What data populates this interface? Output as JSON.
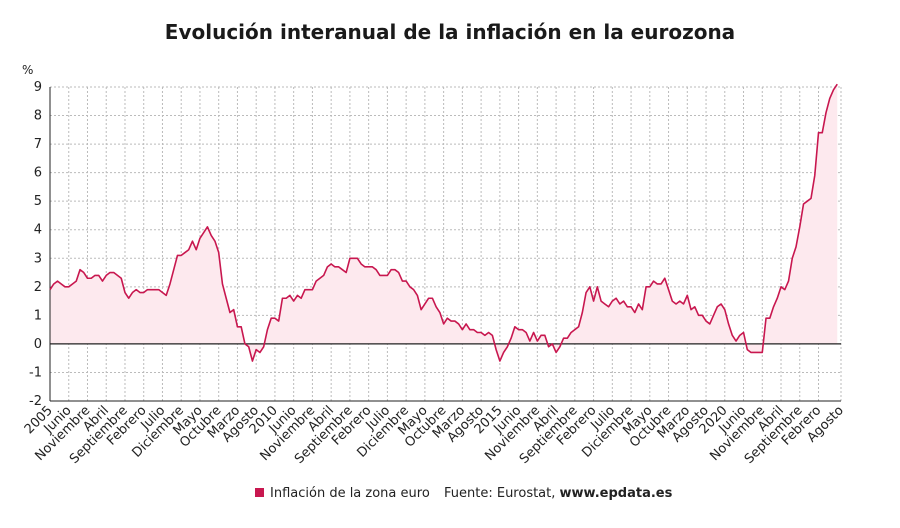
{
  "chart_data": {
    "type": "area",
    "title": "Evolución interanual de la inflación en la eurozona",
    "unit_label": "%",
    "ylim": [
      -2,
      9
    ],
    "yticks": [
      -2,
      -1,
      0,
      1,
      2,
      3,
      4,
      5,
      6,
      7,
      8,
      9
    ],
    "xlim": [
      0,
      211
    ],
    "grid": true,
    "legend_position": "bottom",
    "colors": {
      "line": "#c8174f",
      "fill": "#fde9ee",
      "zero_line": "#222222",
      "grid": "#bbbbbb",
      "axis": "#222222"
    },
    "x_tick_labels": [
      {
        "x": 0,
        "label": "2005"
      },
      {
        "x": 5,
        "label": "Junio"
      },
      {
        "x": 10,
        "label": "Noviembre"
      },
      {
        "x": 15,
        "label": "Abril"
      },
      {
        "x": 20,
        "label": "Septiembre"
      },
      {
        "x": 25,
        "label": "Febrero"
      },
      {
        "x": 30,
        "label": "Julio"
      },
      {
        "x": 35,
        "label": "Diciembre"
      },
      {
        "x": 40,
        "label": "Mayo"
      },
      {
        "x": 45,
        "label": "Octubre"
      },
      {
        "x": 50,
        "label": "Marzo"
      },
      {
        "x": 55,
        "label": "Agosto"
      },
      {
        "x": 60,
        "label": "2010"
      },
      {
        "x": 65,
        "label": "Junio"
      },
      {
        "x": 70,
        "label": "Noviembre"
      },
      {
        "x": 75,
        "label": "Abril"
      },
      {
        "x": 80,
        "label": "Septiembre"
      },
      {
        "x": 85,
        "label": "Febrero"
      },
      {
        "x": 90,
        "label": "Julio"
      },
      {
        "x": 95,
        "label": "Diciembre"
      },
      {
        "x": 100,
        "label": "Mayo"
      },
      {
        "x": 105,
        "label": "Octubre"
      },
      {
        "x": 110,
        "label": "Marzo"
      },
      {
        "x": 115,
        "label": "Agosto"
      },
      {
        "x": 120,
        "label": "2015"
      },
      {
        "x": 125,
        "label": "Junio"
      },
      {
        "x": 130,
        "label": "Noviembre"
      },
      {
        "x": 135,
        "label": "Abril"
      },
      {
        "x": 140,
        "label": "Septiembre"
      },
      {
        "x": 145,
        "label": "Febrero"
      },
      {
        "x": 150,
        "label": "Julio"
      },
      {
        "x": 155,
        "label": "Diciembre"
      },
      {
        "x": 160,
        "label": "Mayo"
      },
      {
        "x": 165,
        "label": "Octubre"
      },
      {
        "x": 170,
        "label": "Marzo"
      },
      {
        "x": 175,
        "label": "Agosto"
      },
      {
        "x": 180,
        "label": "2020"
      },
      {
        "x": 185,
        "label": "Junio"
      },
      {
        "x": 190,
        "label": "Noviembre"
      },
      {
        "x": 195,
        "label": "Abril"
      },
      {
        "x": 200,
        "label": "Septiembre"
      },
      {
        "x": 205,
        "label": "Febrero"
      },
      {
        "x": 211,
        "label": "Agosto"
      }
    ],
    "series": [
      {
        "name": "Inflación de la zona euro",
        "points": [
          [
            0,
            1.9
          ],
          [
            1,
            2.1
          ],
          [
            2,
            2.2
          ],
          [
            3,
            2.1
          ],
          [
            4,
            2.0
          ],
          [
            5,
            2.0
          ],
          [
            6,
            2.1
          ],
          [
            7,
            2.2
          ],
          [
            8,
            2.6
          ],
          [
            9,
            2.5
          ],
          [
            10,
            2.3
          ],
          [
            11,
            2.3
          ],
          [
            12,
            2.4
          ],
          [
            13,
            2.4
          ],
          [
            14,
            2.2
          ],
          [
            15,
            2.4
          ],
          [
            16,
            2.5
          ],
          [
            17,
            2.5
          ],
          [
            18,
            2.4
          ],
          [
            19,
            2.3
          ],
          [
            20,
            1.8
          ],
          [
            21,
            1.6
          ],
          [
            22,
            1.8
          ],
          [
            23,
            1.9
          ],
          [
            24,
            1.8
          ],
          [
            25,
            1.8
          ],
          [
            26,
            1.9
          ],
          [
            27,
            1.9
          ],
          [
            28,
            1.9
          ],
          [
            29,
            1.9
          ],
          [
            30,
            1.8
          ],
          [
            31,
            1.7
          ],
          [
            32,
            2.1
          ],
          [
            33,
            2.6
          ],
          [
            34,
            3.1
          ],
          [
            35,
            3.1
          ],
          [
            36,
            3.2
          ],
          [
            37,
            3.3
          ],
          [
            38,
            3.6
          ],
          [
            39,
            3.3
          ],
          [
            40,
            3.7
          ],
          [
            41,
            3.9
          ],
          [
            42,
            4.1
          ],
          [
            43,
            3.8
          ],
          [
            44,
            3.6
          ],
          [
            45,
            3.2
          ],
          [
            46,
            2.1
          ],
          [
            47,
            1.6
          ],
          [
            48,
            1.1
          ],
          [
            49,
            1.2
          ],
          [
            50,
            0.6
          ],
          [
            51,
            0.6
          ],
          [
            52,
            0.0
          ],
          [
            53,
            -0.1
          ],
          [
            54,
            -0.6
          ],
          [
            55,
            -0.2
          ],
          [
            56,
            -0.3
          ],
          [
            57,
            -0.1
          ],
          [
            58,
            0.5
          ],
          [
            59,
            0.9
          ],
          [
            60,
            0.9
          ],
          [
            61,
            0.8
          ],
          [
            62,
            1.6
          ],
          [
            63,
            1.6
          ],
          [
            64,
            1.7
          ],
          [
            65,
            1.5
          ],
          [
            66,
            1.7
          ],
          [
            67,
            1.6
          ],
          [
            68,
            1.9
          ],
          [
            69,
            1.9
          ],
          [
            70,
            1.9
          ],
          [
            71,
            2.2
          ],
          [
            72,
            2.3
          ],
          [
            73,
            2.4
          ],
          [
            74,
            2.7
          ],
          [
            75,
            2.8
          ],
          [
            76,
            2.7
          ],
          [
            77,
            2.7
          ],
          [
            78,
            2.6
          ],
          [
            79,
            2.5
          ],
          [
            80,
            3.0
          ],
          [
            81,
            3.0
          ],
          [
            82,
            3.0
          ],
          [
            83,
            2.8
          ],
          [
            84,
            2.7
          ],
          [
            85,
            2.7
          ],
          [
            86,
            2.7
          ],
          [
            87,
            2.6
          ],
          [
            88,
            2.4
          ],
          [
            89,
            2.4
          ],
          [
            90,
            2.4
          ],
          [
            91,
            2.6
          ],
          [
            92,
            2.6
          ],
          [
            93,
            2.5
          ],
          [
            94,
            2.2
          ],
          [
            95,
            2.2
          ],
          [
            96,
            2.0
          ],
          [
            97,
            1.9
          ],
          [
            98,
            1.7
          ],
          [
            99,
            1.2
          ],
          [
            100,
            1.4
          ],
          [
            101,
            1.6
          ],
          [
            102,
            1.6
          ],
          [
            103,
            1.3
          ],
          [
            104,
            1.1
          ],
          [
            105,
            0.7
          ],
          [
            106,
            0.9
          ],
          [
            107,
            0.8
          ],
          [
            108,
            0.8
          ],
          [
            109,
            0.7
          ],
          [
            110,
            0.5
          ],
          [
            111,
            0.7
          ],
          [
            112,
            0.5
          ],
          [
            113,
            0.5
          ],
          [
            114,
            0.4
          ],
          [
            115,
            0.4
          ],
          [
            116,
            0.3
          ],
          [
            117,
            0.4
          ],
          [
            118,
            0.3
          ],
          [
            119,
            -0.2
          ],
          [
            120,
            -0.6
          ],
          [
            121,
            -0.3
          ],
          [
            122,
            -0.1
          ],
          [
            123,
            0.2
          ],
          [
            124,
            0.6
          ],
          [
            125,
            0.5
          ],
          [
            126,
            0.5
          ],
          [
            127,
            0.4
          ],
          [
            128,
            0.1
          ],
          [
            129,
            0.4
          ],
          [
            130,
            0.1
          ],
          [
            131,
            0.3
          ],
          [
            132,
            0.3
          ],
          [
            133,
            -0.1
          ],
          [
            134,
            0.0
          ],
          [
            135,
            -0.3
          ],
          [
            136,
            -0.1
          ],
          [
            137,
            0.2
          ],
          [
            138,
            0.2
          ],
          [
            139,
            0.4
          ],
          [
            140,
            0.5
          ],
          [
            141,
            0.6
          ],
          [
            142,
            1.1
          ],
          [
            143,
            1.8
          ],
          [
            144,
            2.0
          ],
          [
            145,
            1.5
          ],
          [
            146,
            2.0
          ],
          [
            147,
            1.5
          ],
          [
            148,
            1.4
          ],
          [
            149,
            1.3
          ],
          [
            150,
            1.5
          ],
          [
            151,
            1.6
          ],
          [
            152,
            1.4
          ],
          [
            153,
            1.5
          ],
          [
            154,
            1.3
          ],
          [
            155,
            1.3
          ],
          [
            156,
            1.1
          ],
          [
            157,
            1.4
          ],
          [
            158,
            1.2
          ],
          [
            159,
            2.0
          ],
          [
            160,
            2.0
          ],
          [
            161,
            2.2
          ],
          [
            162,
            2.1
          ],
          [
            163,
            2.1
          ],
          [
            164,
            2.3
          ],
          [
            165,
            1.9
          ],
          [
            166,
            1.5
          ],
          [
            167,
            1.4
          ],
          [
            168,
            1.5
          ],
          [
            169,
            1.4
          ],
          [
            170,
            1.7
          ],
          [
            171,
            1.2
          ],
          [
            172,
            1.3
          ],
          [
            173,
            1.0
          ],
          [
            174,
            1.0
          ],
          [
            175,
            0.8
          ],
          [
            176,
            0.7
          ],
          [
            177,
            1.0
          ],
          [
            178,
            1.3
          ],
          [
            179,
            1.4
          ],
          [
            180,
            1.2
          ],
          [
            181,
            0.7
          ],
          [
            182,
            0.3
          ],
          [
            183,
            0.1
          ],
          [
            184,
            0.3
          ],
          [
            185,
            0.4
          ],
          [
            186,
            -0.2
          ],
          [
            187,
            -0.3
          ],
          [
            188,
            -0.3
          ],
          [
            189,
            -0.3
          ],
          [
            190,
            -0.3
          ],
          [
            191,
            0.9
          ],
          [
            192,
            0.9
          ],
          [
            193,
            1.3
          ],
          [
            194,
            1.6
          ],
          [
            195,
            2.0
          ],
          [
            196,
            1.9
          ],
          [
            197,
            2.2
          ],
          [
            198,
            3.0
          ],
          [
            199,
            3.4
          ],
          [
            200,
            4.1
          ],
          [
            201,
            4.9
          ],
          [
            202,
            5.0
          ],
          [
            203,
            5.1
          ],
          [
            204,
            5.9
          ],
          [
            205,
            7.4
          ],
          [
            206,
            7.4
          ],
          [
            207,
            8.1
          ],
          [
            208,
            8.6
          ],
          [
            209,
            8.9
          ],
          [
            210,
            9.1
          ]
        ]
      }
    ]
  },
  "footer": {
    "legend_label": "Inflación de la zona euro",
    "source_prefix": "Fuente: Eurostat, ",
    "source_site": "www.epdata.es"
  }
}
